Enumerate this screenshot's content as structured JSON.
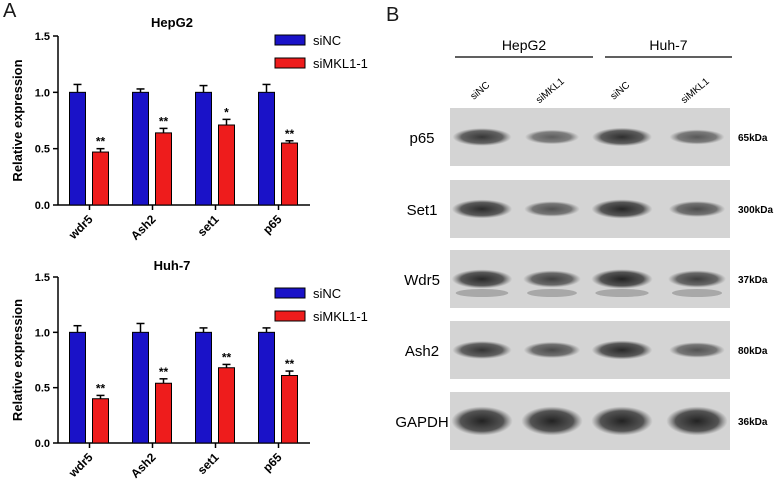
{
  "panel_labels": {
    "a": "A",
    "b": "B"
  },
  "chart_data": [
    {
      "type": "bar",
      "title": "HepG2",
      "ylabel": "Relative expression",
      "xlabel": "",
      "ylim": [
        0,
        1.5
      ],
      "yticks": [
        "0.0",
        "0.5",
        "1.0",
        "1.5"
      ],
      "categories": [
        "wdr5",
        "Ash2",
        "set1",
        "p65"
      ],
      "series": [
        {
          "name": "siNC",
          "color": "#1a12c8",
          "values": [
            1.0,
            1.0,
            1.0,
            1.0
          ],
          "errors": [
            0.07,
            0.03,
            0.06,
            0.07
          ]
        },
        {
          "name": "siMKL1-1",
          "color": "#ee1c1c",
          "values": [
            0.47,
            0.64,
            0.71,
            0.55
          ],
          "errors": [
            0.03,
            0.04,
            0.05,
            0.02
          ]
        }
      ],
      "significance": [
        "**",
        "**",
        "*",
        "**"
      ],
      "legend_position": "top-right",
      "grid": false
    },
    {
      "type": "bar",
      "title": "Huh-7",
      "ylabel": "Relative expression",
      "xlabel": "",
      "ylim": [
        0,
        1.5
      ],
      "yticks": [
        "0.0",
        "0.5",
        "1.0",
        "1.5"
      ],
      "categories": [
        "wdr5",
        "Ash2",
        "set1",
        "p65"
      ],
      "series": [
        {
          "name": "siNC",
          "color": "#1a12c8",
          "values": [
            1.0,
            1.0,
            1.0,
            1.0
          ],
          "errors": [
            0.06,
            0.08,
            0.04,
            0.04
          ]
        },
        {
          "name": "siMKL1-1",
          "color": "#ee1c1c",
          "values": [
            0.4,
            0.54,
            0.68,
            0.61
          ],
          "errors": [
            0.03,
            0.04,
            0.03,
            0.04
          ]
        }
      ],
      "significance": [
        "**",
        "**",
        "**",
        "**"
      ],
      "legend_position": "top-right",
      "grid": false
    }
  ],
  "western_blot": {
    "cell_lines": [
      "HepG2",
      "Huh-7"
    ],
    "lanes": [
      "siNC",
      "siMKL1",
      "siNC",
      "siMKL1"
    ],
    "proteins": [
      {
        "name": "p65",
        "size": "65kDa",
        "intensities": [
          0.78,
          0.45,
          0.85,
          0.5
        ]
      },
      {
        "name": "Set1",
        "size": "300kDa",
        "intensities": [
          0.88,
          0.55,
          0.92,
          0.6
        ]
      },
      {
        "name": "Wdr5",
        "size": "37kDa",
        "intensities": [
          0.9,
          0.7,
          0.95,
          0.72
        ]
      },
      {
        "name": "Ash2",
        "size": "80kDa",
        "intensities": [
          0.8,
          0.62,
          0.9,
          0.55
        ]
      },
      {
        "name": "GAPDH",
        "size": "36kDa",
        "intensities": [
          0.95,
          0.95,
          0.95,
          0.95
        ]
      }
    ]
  }
}
